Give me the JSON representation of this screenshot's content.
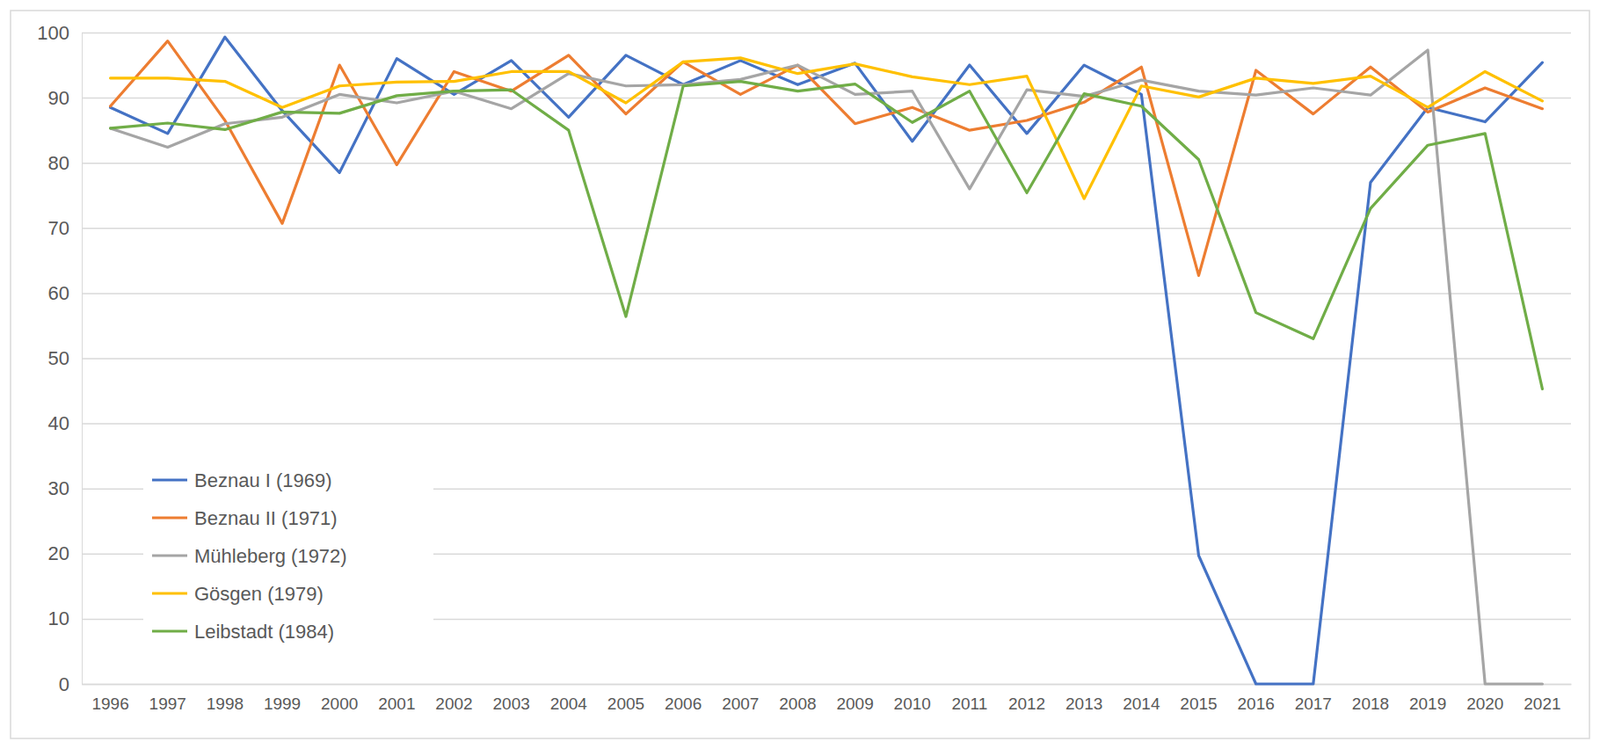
{
  "chart_data": {
    "type": "line",
    "categories": [
      "1996",
      "1997",
      "1998",
      "1999",
      "2000",
      "2001",
      "2002",
      "2003",
      "2004",
      "2005",
      "2006",
      "2007",
      "2008",
      "2009",
      "2010",
      "2011",
      "2012",
      "2013",
      "2014",
      "2015",
      "2016",
      "2017",
      "2018",
      "2019",
      "2020",
      "2021"
    ],
    "series": [
      {
        "name": "Beznau I (1969)",
        "color": "#4472c4",
        "values": [
          88.5,
          84.5,
          99.3,
          88,
          78.5,
          96,
          90.5,
          95.7,
          87,
          96.5,
          92,
          95.7,
          92,
          95.3,
          83.3,
          95,
          84.5,
          95,
          90.5,
          19.7,
          0,
          0,
          77,
          88.5,
          86.3,
          95.4
        ]
      },
      {
        "name": "Beznau II (1971)",
        "color": "#ed7d31",
        "values": [
          88.7,
          98.7,
          86.5,
          70.7,
          95,
          79.7,
          94,
          91,
          96.5,
          87.5,
          95.5,
          90.5,
          95,
          86,
          88.5,
          85,
          86.5,
          89.3,
          94.7,
          62.7,
          94.2,
          87.5,
          94.7,
          87.8,
          91.5,
          88.3
        ]
      },
      {
        "name": "Mühleberg (1972)",
        "color": "#a5a5a5",
        "values": [
          85.3,
          82.4,
          86,
          87,
          90.5,
          89.2,
          91,
          88.3,
          93.7,
          91.8,
          92,
          92.8,
          95,
          90.5,
          91,
          76,
          91.2,
          90.2,
          92.7,
          91,
          90.4,
          91.5,
          90.4,
          97.3,
          0,
          0
        ]
      },
      {
        "name": "Gösgen (1979)",
        "color": "#ffc000",
        "values": [
          93,
          93,
          92.5,
          88.5,
          91.8,
          92.4,
          92.5,
          94,
          94,
          89.2,
          95.5,
          96.1,
          93.7,
          95.2,
          93.2,
          92,
          93.3,
          74.5,
          91.8,
          90.1,
          93,
          92.2,
          93.3,
          88.5,
          94,
          89.5
        ]
      },
      {
        "name": "Leibstadt (1984)",
        "color": "#70ad47",
        "values": [
          85.3,
          86.1,
          85.1,
          87.8,
          87.6,
          90.3,
          91,
          91.2,
          85,
          56.4,
          91.8,
          92.5,
          91,
          92.1,
          86.2,
          91,
          75.4,
          90.6,
          88.7,
          80.5,
          57,
          53,
          73,
          82.7,
          84.5,
          45.3
        ]
      }
    ],
    "ylim": [
      0,
      100
    ],
    "yticks": [
      0,
      10,
      20,
      30,
      40,
      50,
      60,
      70,
      80,
      90,
      100
    ],
    "grid": true,
    "legend": "lower left"
  }
}
